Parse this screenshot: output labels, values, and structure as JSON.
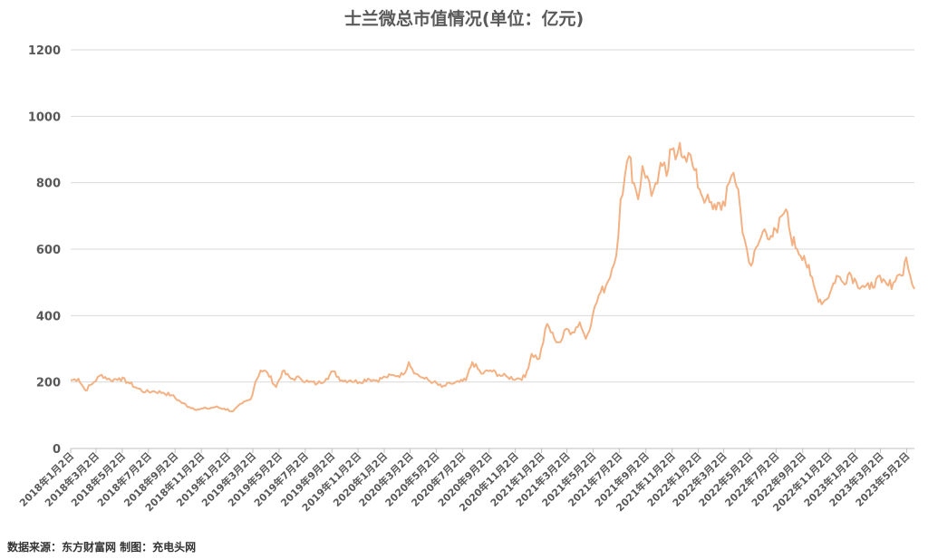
{
  "chart_data": {
    "type": "line",
    "title": "士兰微总市值情况(单位：亿元)",
    "ylim": [
      0,
      1200
    ],
    "yticks": [
      0,
      200,
      400,
      600,
      800,
      1000,
      1200
    ],
    "grid": true,
    "legend": "none",
    "line_color": "#F4B183",
    "x_tick_labels": [
      "2018年1月2日",
      "2018年3月2日",
      "2018年5月2日",
      "2018年7月2日",
      "2018年9月2日",
      "2018年11月2日",
      "2019年1月2日",
      "2019年3月2日",
      "2019年5月2日",
      "2019年7月2日",
      "2019年9月2日",
      "2019年11月2日",
      "2020年1月2日",
      "2020年3月2日",
      "2020年5月2日",
      "2020年7月2日",
      "2020年9月2日",
      "2020年11月2日",
      "2021年1月2日",
      "2021年3月2日",
      "2021年5月2日",
      "2021年7月2日",
      "2021年9月2日",
      "2021年11月2日",
      "2022年1月2日",
      "2022年3月2日",
      "2022年5月2日",
      "2022年7月2日",
      "2022年9月2日",
      "2022年11月2日",
      "2023年1月2日",
      "2023年3月2日",
      "2023年5月2日"
    ],
    "series": [
      {
        "x": [
          "2018-01-02",
          "2018-01-20",
          "2018-02-05",
          "2018-02-25",
          "2018-03-15",
          "2018-04-05",
          "2018-04-25",
          "2018-05-15",
          "2018-06-05",
          "2018-06-25",
          "2018-07-15",
          "2018-08-05",
          "2018-08-25",
          "2018-09-15",
          "2018-10-05",
          "2018-10-25",
          "2018-11-15",
          "2018-12-05",
          "2018-12-25",
          "2019-01-15",
          "2019-02-05",
          "2019-02-25",
          "2019-03-08",
          "2019-03-20",
          "2019-04-05",
          "2019-04-25",
          "2019-05-10",
          "2019-05-30",
          "2019-06-20",
          "2019-07-10",
          "2019-07-30",
          "2019-08-20",
          "2019-09-05",
          "2019-09-25",
          "2019-10-15",
          "2019-11-05",
          "2019-11-25",
          "2019-12-15",
          "2020-01-05",
          "2020-01-25",
          "2020-02-15",
          "2020-02-28",
          "2020-03-15",
          "2020-04-05",
          "2020-04-25",
          "2020-05-15",
          "2020-06-05",
          "2020-06-25",
          "2020-07-10",
          "2020-07-25",
          "2020-08-15",
          "2020-09-05",
          "2020-09-25",
          "2020-10-15",
          "2020-11-05",
          "2020-11-25",
          "2020-12-10",
          "2020-12-28",
          "2021-01-15",
          "2021-02-01",
          "2021-02-15",
          "2021-03-01",
          "2021-03-15",
          "2021-04-01",
          "2021-04-15",
          "2021-05-01",
          "2021-05-15",
          "2021-06-01",
          "2021-06-15",
          "2021-06-25",
          "2021-07-05",
          "2021-07-15",
          "2021-07-25",
          "2021-08-05",
          "2021-08-15",
          "2021-08-25",
          "2021-09-05",
          "2021-09-15",
          "2021-09-25",
          "2021-10-10",
          "2021-10-20",
          "2021-11-01",
          "2021-11-10",
          "2021-11-20",
          "2021-12-01",
          "2021-12-10",
          "2021-12-20",
          "2022-01-05",
          "2022-01-20",
          "2022-02-05",
          "2022-02-20",
          "2022-03-05",
          "2022-03-15",
          "2022-03-25",
          "2022-04-05",
          "2022-04-15",
          "2022-04-25",
          "2022-05-05",
          "2022-05-20",
          "2022-06-05",
          "2022-06-20",
          "2022-07-05",
          "2022-07-15",
          "2022-07-25",
          "2022-08-05",
          "2022-08-20",
          "2022-09-05",
          "2022-09-20",
          "2022-10-05",
          "2022-10-20",
          "2022-11-05",
          "2022-11-20",
          "2022-12-05",
          "2022-12-20",
          "2023-01-05",
          "2023-01-20",
          "2023-02-05",
          "2023-02-20",
          "2023-03-05",
          "2023-03-20",
          "2023-04-01",
          "2023-04-10",
          "2023-04-20",
          "2023-05-01",
          "2023-05-10",
          "2023-05-20"
        ],
        "y": [
          205,
          210,
          175,
          200,
          222,
          205,
          212,
          200,
          182,
          170,
          172,
          168,
          160,
          140,
          125,
          118,
          120,
          125,
          120,
          112,
          135,
          148,
          200,
          235,
          228,
          185,
          232,
          210,
          212,
          200,
          195,
          210,
          232,
          205,
          205,
          200,
          210,
          205,
          215,
          220,
          222,
          260,
          225,
          210,
          200,
          185,
          195,
          200,
          205,
          260,
          225,
          235,
          222,
          215,
          210,
          215,
          285,
          270,
          375,
          330,
          320,
          360,
          350,
          380,
          330,
          400,
          460,
          490,
          540,
          580,
          750,
          820,
          880,
          800,
          750,
          850,
          820,
          760,
          800,
          850,
          820,
          900,
          870,
          920,
          880,
          890,
          850,
          780,
          750,
          720,
          740,
          730,
          800,
          830,
          780,
          650,
          600,
          550,
          610,
          660,
          640,
          650,
          700,
          720,
          640,
          600,
          580,
          520,
          460,
          440,
          470,
          520,
          500,
          530,
          500,
          490,
          480,
          510,
          500,
          490,
          500,
          520,
          520,
          575,
          520,
          480
        ]
      }
    ]
  },
  "footer": {
    "source_text": "数据来源：东方财富网 制图：充电头网"
  }
}
